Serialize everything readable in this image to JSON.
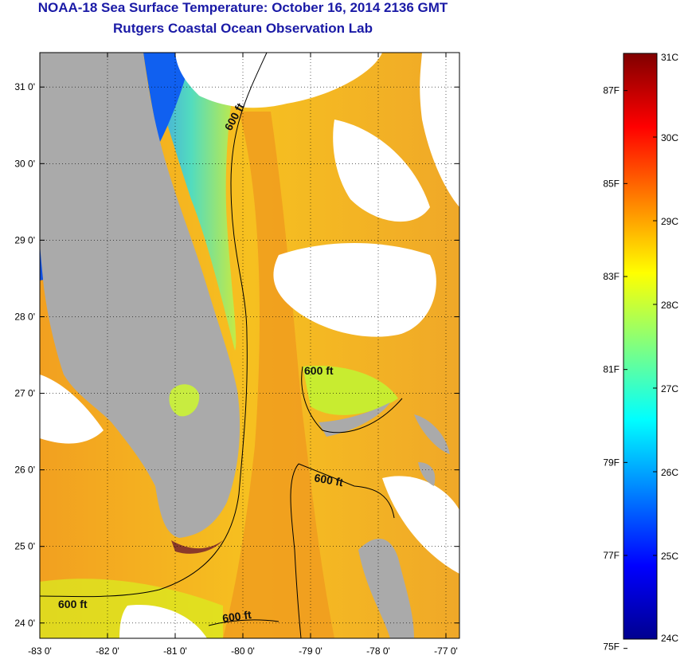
{
  "header": {
    "title": "NOAA-18 Sea Surface Temperature:  October 16, 2014 2136 GMT",
    "subtitle": "Rutgers Coastal Ocean Observation Lab"
  },
  "map": {
    "lat_labels": [
      "24 0'",
      "25 0'",
      "26 0'",
      "27 0'",
      "28 0'",
      "29 0'",
      "30 0'",
      "31 0'"
    ],
    "lon_labels": [
      "-83 0'",
      "-82 0'",
      "-81 0'",
      "-80 0'",
      "-79 0'",
      "-78 0'",
      "-77 0'"
    ],
    "lat_values": [
      24,
      25,
      26,
      27,
      28,
      29,
      30,
      31
    ],
    "lon_values": [
      -83,
      -82,
      -81,
      -80,
      -79,
      -78,
      -77
    ],
    "lat_range": [
      23.8,
      31.45
    ],
    "lon_range": [
      -83.0,
      -76.8
    ],
    "contour_label": "600 ft",
    "land_color": "#aaaaaa",
    "cloud_color": "#ffffff"
  },
  "colorbar": {
    "celsius_labels": [
      "31C",
      "30C",
      "29C",
      "28C",
      "27C",
      "26C",
      "25C",
      "24C"
    ],
    "celsius_values": [
      31,
      30,
      29,
      28,
      27,
      26,
      25,
      24
    ],
    "fahrenheit_labels": [
      "87F",
      "85F",
      "83F",
      "81F",
      "79F",
      "77F",
      "75F"
    ],
    "fahrenheit_values": [
      87,
      85,
      83,
      81,
      79,
      77,
      75
    ],
    "range_c": [
      24,
      31
    ],
    "colors": [
      "#00008f",
      "#0000ff",
      "#0080ff",
      "#00ffff",
      "#80ff80",
      "#ffff00",
      "#ff8000",
      "#ff0000",
      "#800000"
    ]
  }
}
